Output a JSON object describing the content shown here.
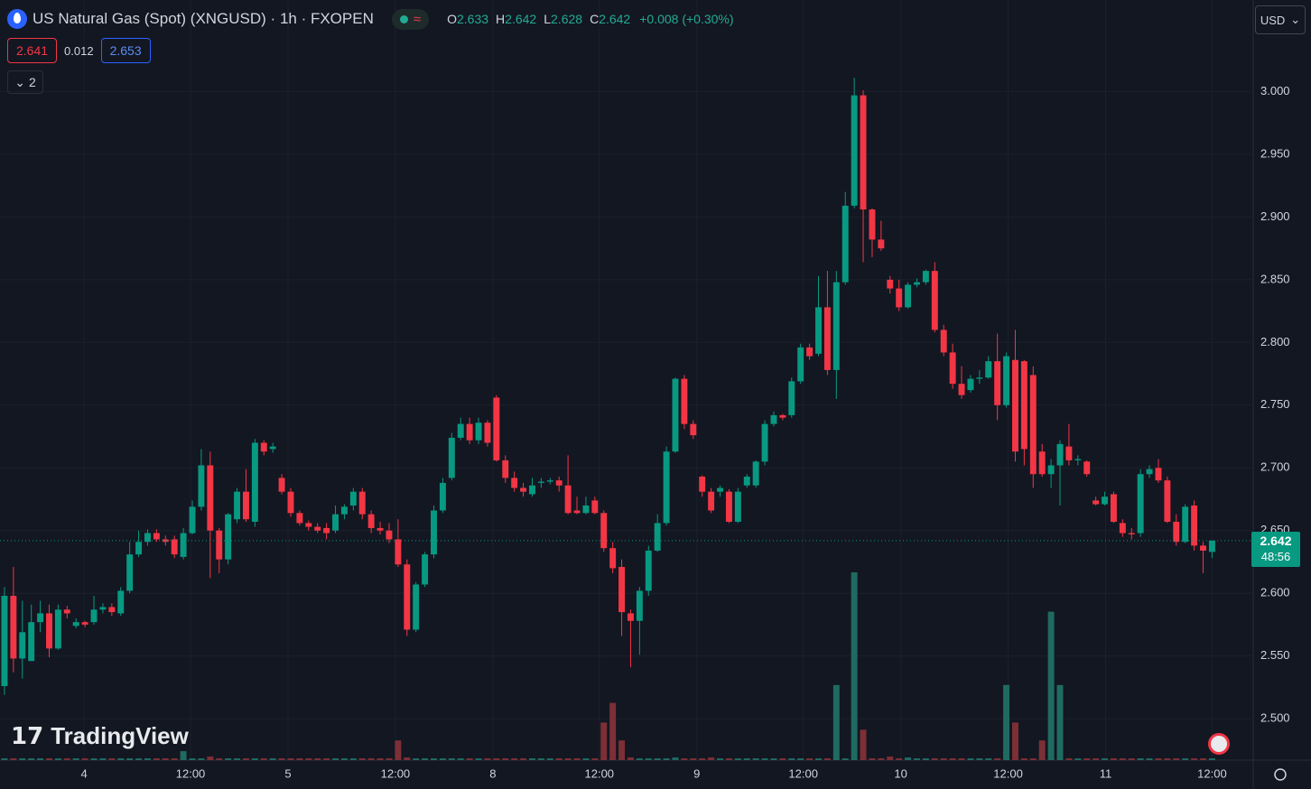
{
  "header": {
    "title": "US Natural Gas (Spot) (XNGUSD) · 1h · FXOPEN",
    "ohlc": [
      {
        "key": "O",
        "value": "2.633"
      },
      {
        "key": "H",
        "value": "2.642"
      },
      {
        "key": "L",
        "value": "2.628"
      },
      {
        "key": "C",
        "value": "2.642"
      }
    ],
    "change": "+0.008 (+0.30%)",
    "bid": "2.641",
    "spread": "0.012",
    "ask": "2.653",
    "indicators_count": "2",
    "currency": "USD",
    "watermark": "TradingView"
  },
  "chart_data": {
    "type": "candlestick",
    "open": [
      2.526,
      2.598,
      2.548,
      2.546,
      2.577,
      2.584,
      2.556,
      2.587,
      2.574,
      2.577,
      2.577,
      2.587,
      2.589,
      2.584,
      2.602,
      2.631,
      2.641,
      2.648,
      2.643,
      2.643,
      2.629,
      2.648,
      2.669,
      2.702,
      2.65,
      2.627,
      2.659,
      2.681,
      2.657,
      2.72,
      2.715,
      2.692,
      2.681,
      2.664,
      2.656,
      2.653,
      2.652,
      2.65,
      2.663,
      2.67,
      2.681,
      2.663,
      2.652,
      2.65,
      2.643,
      2.623,
      2.571,
      2.607,
      2.631,
      2.666,
      2.692,
      2.724,
      2.735,
      2.722,
      2.736,
      2.756,
      2.706,
      2.692,
      2.684,
      2.679,
      2.688,
      2.689,
      2.69,
      2.686,
      2.666,
      2.664,
      2.674,
      2.664,
      2.636,
      2.621,
      2.584,
      2.578,
      2.602,
      2.634,
      2.656,
      2.713,
      2.771,
      2.735,
      2.693,
      2.681,
      2.681,
      2.681,
      2.657,
      2.686,
      2.686,
      2.705,
      2.735,
      2.742,
      2.742,
      2.769,
      2.796,
      2.791,
      2.828,
      2.778,
      2.848,
      2.909,
      2.997,
      2.906,
      2.882,
      2.85,
      2.843,
      2.828,
      2.846,
      2.848,
      2.857,
      2.81,
      2.792,
      2.767,
      2.762,
      2.771,
      2.772,
      2.785,
      2.75,
      2.786,
      2.785,
      2.774,
      2.713,
      2.695,
      2.702,
      2.717,
      2.706,
      2.705,
      2.674,
      2.671,
      2.679,
      2.656,
      2.648,
      2.648,
      2.695,
      2.7,
      2.69,
      2.657,
      2.641,
      2.67,
      2.638,
      2.633
    ],
    "high": [
      2.605,
      2.621,
      2.594,
      2.591,
      2.594,
      2.591,
      2.591,
      2.59,
      2.58,
      2.578,
      2.598,
      2.592,
      2.592,
      2.605,
      2.641,
      2.65,
      2.651,
      2.651,
      2.646,
      2.646,
      2.652,
      2.674,
      2.715,
      2.713,
      2.652,
      2.664,
      2.684,
      2.699,
      2.723,
      2.722,
      2.72,
      2.695,
      2.684,
      2.666,
      2.658,
      2.656,
      2.656,
      2.67,
      2.671,
      2.684,
      2.684,
      2.666,
      2.657,
      2.656,
      2.659,
      2.627,
      2.609,
      2.633,
      2.67,
      2.692,
      2.728,
      2.74,
      2.74,
      2.74,
      2.738,
      2.758,
      2.71,
      2.697,
      2.688,
      2.692,
      2.692,
      2.692,
      2.693,
      2.71,
      2.677,
      2.677,
      2.677,
      2.666,
      2.641,
      2.627,
      2.587,
      2.605,
      2.638,
      2.663,
      2.717,
      2.772,
      2.774,
      2.738,
      2.694,
      2.684,
      2.686,
      2.683,
      2.684,
      2.695,
      2.706,
      2.738,
      2.745,
      2.743,
      2.772,
      2.799,
      2.799,
      2.853,
      2.857,
      2.857,
      2.92,
      3.011,
      3.001,
      2.907,
      2.897,
      2.853,
      2.85,
      2.848,
      2.851,
      2.858,
      2.864,
      2.814,
      2.799,
      2.781,
      2.774,
      2.778,
      2.789,
      2.807,
      2.792,
      2.81,
      2.786,
      2.781,
      2.719,
      2.707,
      2.722,
      2.735,
      2.71,
      2.706,
      2.677,
      2.681,
      2.681,
      2.659,
      2.652,
      2.699,
      2.702,
      2.707,
      2.693,
      2.663,
      2.671,
      2.674,
      2.641,
      2.642
    ],
    "low": [
      2.519,
      2.537,
      2.532,
      2.546,
      2.569,
      2.549,
      2.555,
      2.58,
      2.572,
      2.573,
      2.575,
      2.584,
      2.582,
      2.582,
      2.6,
      2.629,
      2.638,
      2.641,
      2.638,
      2.628,
      2.627,
      2.647,
      2.666,
      2.612,
      2.616,
      2.623,
      2.656,
      2.657,
      2.653,
      2.71,
      2.712,
      2.679,
      2.661,
      2.654,
      2.65,
      2.648,
      2.643,
      2.648,
      2.659,
      2.666,
      2.659,
      2.648,
      2.647,
      2.64,
      2.621,
      2.566,
      2.569,
      2.605,
      2.628,
      2.664,
      2.69,
      2.722,
      2.719,
      2.719,
      2.717,
      2.705,
      2.688,
      2.681,
      2.677,
      2.677,
      2.684,
      2.687,
      2.681,
      2.663,
      2.663,
      2.663,
      2.663,
      2.633,
      2.616,
      2.566,
      2.541,
      2.551,
      2.598,
      2.633,
      2.654,
      2.712,
      2.731,
      2.723,
      2.677,
      2.664,
      2.677,
      2.656,
      2.656,
      2.684,
      2.684,
      2.702,
      2.733,
      2.738,
      2.74,
      2.767,
      2.786,
      2.789,
      2.774,
      2.755,
      2.846,
      2.907,
      2.864,
      2.868,
      2.873,
      2.839,
      2.825,
      2.827,
      2.844,
      2.846,
      2.808,
      2.789,
      2.763,
      2.755,
      2.76,
      2.767,
      2.771,
      2.738,
      2.748,
      2.705,
      2.702,
      2.684,
      2.693,
      2.684,
      2.67,
      2.702,
      2.702,
      2.693,
      2.67,
      2.67,
      2.656,
      2.645,
      2.643,
      2.645,
      2.692,
      2.688,
      2.656,
      2.638,
      2.64,
      2.634,
      2.616,
      2.628
    ],
    "close": [
      2.598,
      2.548,
      2.569,
      2.577,
      2.584,
      2.556,
      2.587,
      2.584,
      2.577,
      2.575,
      2.587,
      2.589,
      2.585,
      2.602,
      2.631,
      2.641,
      2.648,
      2.643,
      2.641,
      2.631,
      2.648,
      2.669,
      2.702,
      2.65,
      2.627,
      2.663,
      2.681,
      2.659,
      2.72,
      2.713,
      2.717,
      2.681,
      2.664,
      2.656,
      2.653,
      2.65,
      2.648,
      2.663,
      2.669,
      2.681,
      2.663,
      2.652,
      2.65,
      2.643,
      2.623,
      2.571,
      2.607,
      2.631,
      2.666,
      2.688,
      2.724,
      2.735,
      2.722,
      2.736,
      2.72,
      2.706,
      2.692,
      2.684,
      2.681,
      2.686,
      2.689,
      2.69,
      2.686,
      2.664,
      2.664,
      2.67,
      2.664,
      2.636,
      2.62,
      2.585,
      2.578,
      2.602,
      2.634,
      2.656,
      2.713,
      2.771,
      2.735,
      2.726,
      2.681,
      2.666,
      2.684,
      2.657,
      2.681,
      2.693,
      2.705,
      2.735,
      2.742,
      2.74,
      2.769,
      2.796,
      2.789,
      2.828,
      2.778,
      2.848,
      2.909,
      2.997,
      2.906,
      2.882,
      2.875,
      2.843,
      2.828,
      2.846,
      2.848,
      2.857,
      2.81,
      2.792,
      2.767,
      2.758,
      2.771,
      2.772,
      2.785,
      2.75,
      2.789,
      2.713,
      2.715,
      2.695,
      2.695,
      2.702,
      2.719,
      2.706,
      2.707,
      2.695,
      2.671,
      2.677,
      2.657,
      2.648,
      2.647,
      2.695,
      2.699,
      2.69,
      2.657,
      2.641,
      2.669,
      2.638,
      2.634,
      2.642
    ],
    "volume": [
      2,
      2,
      2,
      2,
      2,
      2,
      2,
      2,
      2,
      2,
      2,
      2,
      2,
      2,
      2,
      2,
      2,
      2,
      2,
      2,
      10,
      2,
      2,
      4,
      2,
      2,
      2,
      2,
      2,
      2,
      2,
      2,
      2,
      2,
      2,
      2,
      2,
      2,
      2,
      2,
      2,
      2,
      2,
      2,
      22,
      3,
      2,
      2,
      2,
      2,
      2,
      2,
      2,
      2,
      2,
      2,
      2,
      2,
      2,
      2,
      2,
      2,
      2,
      2,
      2,
      2,
      2,
      42,
      64,
      22,
      3,
      2,
      2,
      2,
      2,
      3,
      2,
      2,
      2,
      3,
      2,
      2,
      2,
      2,
      2,
      2,
      2,
      2,
      2,
      2,
      2,
      2,
      2,
      84,
      2,
      210,
      34,
      2,
      2,
      4,
      2,
      3,
      2,
      2,
      2,
      2,
      2,
      2,
      2,
      2,
      2,
      2,
      84,
      42,
      2,
      2,
      22,
      166,
      84,
      2,
      2,
      2,
      2,
      2,
      2,
      2,
      2,
      2,
      2,
      2,
      2,
      2,
      2,
      2,
      2,
      2
    ],
    "up_color": "#089981",
    "down_color": "#f23645",
    "volume_up_color": "#1f6b62",
    "volume_down_color": "#7d2f36",
    "ylim": [
      2.467,
      3.073
    ],
    "volume_ylim": [
      0,
      850
    ],
    "xlim": [
      -0.5,
      139.6
    ],
    "yticks": [
      {
        "value": 2.5,
        "label": "2.500"
      },
      {
        "value": 2.55,
        "label": "2.550"
      },
      {
        "value": 2.6,
        "label": "2.600"
      },
      {
        "value": 2.65,
        "label": "2.650"
      },
      {
        "value": 2.7,
        "label": "2.700"
      },
      {
        "value": 2.75,
        "label": "2.750"
      },
      {
        "value": 2.8,
        "label": "2.800"
      },
      {
        "value": 2.85,
        "label": "2.850"
      },
      {
        "value": 2.9,
        "label": "2.900"
      },
      {
        "value": 2.95,
        "label": "2.950"
      },
      {
        "value": 3,
        "label": "3.000"
      }
    ],
    "xticks": [
      {
        "value": 8.9,
        "label": "4"
      },
      {
        "value": 20.8,
        "label": "12:00"
      },
      {
        "value": 31.7,
        "label": "5"
      },
      {
        "value": 43.7,
        "label": "12:00"
      },
      {
        "value": 54.6,
        "label": "8"
      },
      {
        "value": 66.5,
        "label": "12:00"
      },
      {
        "value": 77.4,
        "label": "9"
      },
      {
        "value": 89.3,
        "label": "12:00"
      },
      {
        "value": 100.2,
        "label": "10"
      },
      {
        "value": 112.2,
        "label": "12:00"
      },
      {
        "value": 123.1,
        "label": "11"
      },
      {
        "value": 135,
        "label": "12:00"
      }
    ],
    "grid": true,
    "last_price": {
      "value": 2.642,
      "countdown": "48:56"
    }
  }
}
